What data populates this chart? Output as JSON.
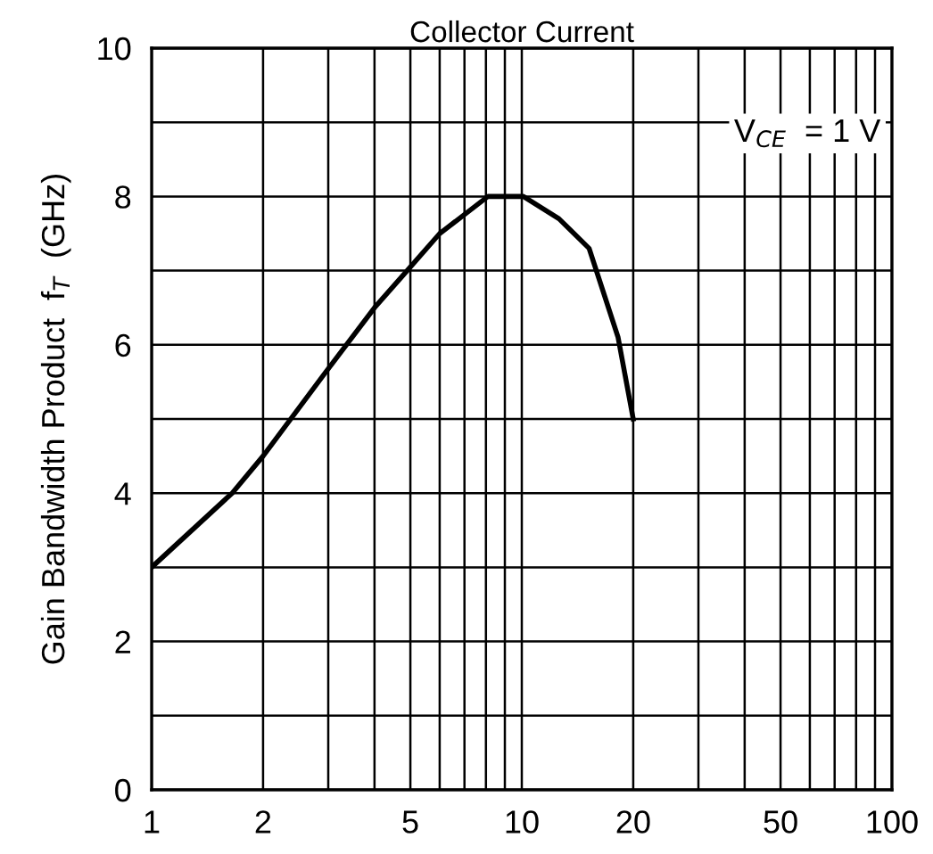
{
  "chart_data": {
    "type": "line",
    "title": "Collector Current",
    "ylabel": "Gain Bandwidth Product  f$_{T}$  (GHz)",
    "annotations": [
      "V$_{CE}$  = 1 V"
    ],
    "log": "x",
    "grid": true,
    "marker": "none",
    "line_style": "solid",
    "x": [
      1,
      1.65,
      2,
      2.92,
      4.0,
      4.9,
      6.0,
      8.1,
      10.1,
      12.6,
      15.2,
      18.2,
      20
    ],
    "series": [
      {
        "color": "#000000",
        "values": [
          3.0,
          4.0,
          4.5,
          5.6,
          6.5,
          7.0,
          7.5,
          8.0,
          8.0,
          7.7,
          7.3,
          6.1,
          5.0
        ]
      }
    ],
    "xlim": [
      1,
      100
    ],
    "xticks": [
      1,
      2,
      {
        "value": 3,
        "label": null
      },
      {
        "value": 4,
        "label": null
      },
      5,
      {
        "value": 6,
        "label": null
      },
      {
        "value": 7,
        "label": null
      },
      {
        "value": 8,
        "label": null
      },
      {
        "value": 9,
        "label": null
      },
      10,
      20,
      {
        "value": 30,
        "label": null
      },
      {
        "value": 40,
        "label": null
      },
      50,
      {
        "value": 60,
        "label": null
      },
      {
        "value": 70,
        "label": null
      },
      {
        "value": 80,
        "label": null
      },
      {
        "value": 90,
        "label": null
      },
      100
    ],
    "ylim": [
      0,
      10
    ],
    "yticks": [
      0,
      {
        "value": 1,
        "label": null
      },
      2,
      {
        "value": 3,
        "label": null
      },
      4,
      {
        "value": 5,
        "label": null
      },
      6,
      {
        "value": 7,
        "label": null
      },
      8,
      {
        "value": 9,
        "label": null
      },
      10
    ]
  }
}
